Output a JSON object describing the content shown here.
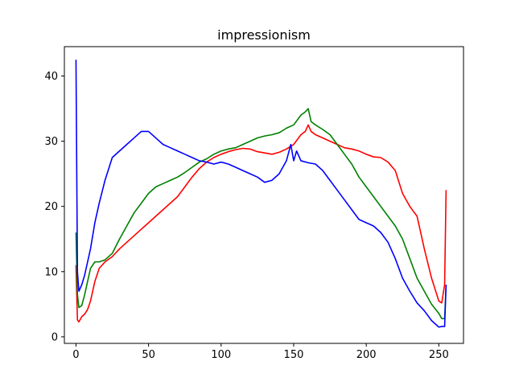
{
  "chart_data": {
    "type": "line",
    "title": "impressionism",
    "xlabel": "",
    "ylabel": "",
    "xlim": [
      -8,
      267
    ],
    "ylim": [
      -1,
      44.5
    ],
    "xticks": [
      0,
      50,
      100,
      150,
      200,
      250
    ],
    "yticks": [
      0,
      10,
      20,
      30,
      40
    ],
    "grid": false,
    "legend": "none",
    "series": [
      {
        "color": "#ff0000",
        "x": [
          0,
          1,
          2,
          4,
          6,
          8,
          10,
          13,
          16,
          20,
          25,
          30,
          35,
          40,
          45,
          50,
          55,
          60,
          65,
          70,
          75,
          80,
          85,
          90,
          95,
          100,
          105,
          110,
          115,
          120,
          125,
          130,
          135,
          140,
          145,
          150,
          155,
          158,
          160,
          162,
          165,
          170,
          175,
          180,
          185,
          190,
          195,
          200,
          205,
          210,
          215,
          220,
          225,
          230,
          235,
          240,
          245,
          250,
          252,
          254,
          255
        ],
        "values": [
          11,
          2.6,
          2.3,
          3.1,
          3.5,
          4.2,
          5.5,
          8.5,
          10.5,
          11.5,
          12.3,
          13.5,
          14.5,
          15.5,
          16.5,
          17.5,
          18.5,
          19.5,
          20.5,
          21.5,
          23,
          24.5,
          25.8,
          26.8,
          27.5,
          28,
          28.4,
          28.7,
          28.9,
          28.8,
          28.4,
          28.2,
          28,
          28.3,
          28.8,
          29.5,
          31,
          31.5,
          32.5,
          31.5,
          31,
          30.5,
          30,
          29.5,
          29,
          28.8,
          28.5,
          28,
          27.6,
          27.5,
          26.8,
          25.5,
          22,
          20,
          18.5,
          13.5,
          9,
          5.5,
          5.2,
          8,
          22.5
        ]
      },
      {
        "color": "#008000",
        "x": [
          0,
          1,
          2,
          4,
          6,
          8,
          10,
          13,
          16,
          20,
          25,
          30,
          35,
          40,
          45,
          50,
          55,
          60,
          65,
          70,
          75,
          80,
          85,
          90,
          95,
          100,
          105,
          110,
          115,
          120,
          125,
          130,
          135,
          140,
          145,
          150,
          155,
          158,
          160,
          162,
          165,
          170,
          175,
          180,
          185,
          190,
          195,
          200,
          205,
          210,
          215,
          220,
          225,
          230,
          235,
          240,
          245,
          250,
          252,
          254,
          255
        ],
        "values": [
          16,
          6.5,
          4.5,
          4.8,
          6.5,
          8.5,
          10.5,
          11.5,
          11.5,
          11.8,
          12.8,
          15,
          17,
          19,
          20.5,
          22,
          23,
          23.5,
          24,
          24.5,
          25.2,
          26,
          26.8,
          27.3,
          28,
          28.5,
          28.8,
          29,
          29.5,
          30,
          30.5,
          30.8,
          31,
          31.3,
          32,
          32.5,
          34,
          34.5,
          35,
          33,
          32.5,
          31.8,
          31,
          29.5,
          28,
          26.5,
          24.5,
          23,
          21.5,
          20,
          18.5,
          17,
          15,
          12,
          9,
          7,
          5,
          3.6,
          2.8,
          2.8,
          8
        ]
      },
      {
        "color": "#0000ff",
        "x": [
          0,
          1,
          2,
          4,
          6,
          8,
          10,
          13,
          16,
          20,
          25,
          30,
          35,
          40,
          45,
          50,
          55,
          60,
          65,
          70,
          75,
          80,
          85,
          90,
          95,
          100,
          105,
          110,
          115,
          120,
          125,
          130,
          135,
          140,
          145,
          148,
          150,
          152,
          155,
          160,
          165,
          170,
          175,
          180,
          185,
          190,
          195,
          200,
          205,
          210,
          215,
          220,
          225,
          230,
          235,
          240,
          245,
          250,
          252,
          254,
          255
        ],
        "values": [
          42.5,
          10,
          7,
          8,
          9.5,
          11.5,
          13.5,
          17.5,
          20.5,
          24,
          27.5,
          28.5,
          29.5,
          30.5,
          31.5,
          31.5,
          30.5,
          29.5,
          29,
          28.5,
          28,
          27.5,
          27,
          26.8,
          26.5,
          26.8,
          26.5,
          26,
          25.5,
          25,
          24.5,
          23.7,
          24,
          25,
          27,
          29.5,
          27,
          28.5,
          27,
          26.7,
          26.5,
          25.5,
          24,
          22.5,
          21,
          19.5,
          18,
          17.5,
          17,
          16,
          14.5,
          12,
          9,
          7,
          5.2,
          4,
          2.5,
          1.5,
          1.6,
          1.6,
          8
        ]
      }
    ]
  }
}
